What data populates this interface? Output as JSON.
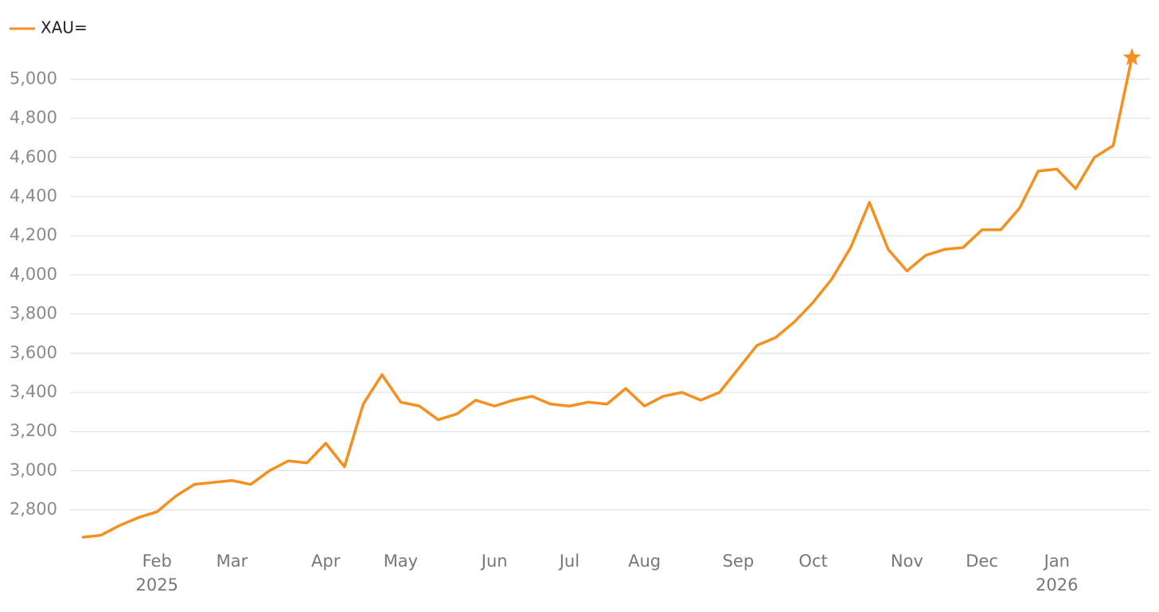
{
  "chart_data": {
    "type": "line",
    "categories": [
      null,
      null,
      null,
      null,
      "Feb",
      null,
      null,
      null,
      "Mar",
      null,
      null,
      null,
      null,
      "Apr",
      null,
      null,
      null,
      "May",
      null,
      null,
      null,
      null,
      "Jun",
      null,
      null,
      null,
      "Jul",
      null,
      null,
      null,
      "Aug",
      null,
      null,
      null,
      null,
      "Sep",
      null,
      null,
      null,
      "Oct",
      null,
      null,
      null,
      null,
      "Nov",
      null,
      null,
      null,
      "Dec",
      null,
      null,
      null,
      "Jan",
      null,
      null,
      null,
      null
    ],
    "category_sublabels": [
      null,
      null,
      null,
      null,
      "2025",
      null,
      null,
      null,
      null,
      null,
      null,
      null,
      null,
      null,
      null,
      null,
      null,
      null,
      null,
      null,
      null,
      null,
      null,
      null,
      null,
      null,
      null,
      null,
      null,
      null,
      null,
      null,
      null,
      null,
      null,
      null,
      null,
      null,
      null,
      null,
      null,
      null,
      null,
      null,
      null,
      null,
      null,
      null,
      null,
      null,
      null,
      null,
      "2026",
      null,
      null,
      null,
      null
    ],
    "series": [
      {
        "name": "XAU=",
        "color": "#f5901e",
        "values": [
          2660,
          2670,
          2720,
          2760,
          2790,
          2870,
          2930,
          2940,
          2950,
          2930,
          3000,
          3050,
          3040,
          3140,
          3020,
          3340,
          3490,
          3350,
          3330,
          3260,
          3290,
          3360,
          3330,
          3360,
          3380,
          3340,
          3330,
          3350,
          3340,
          3420,
          3330,
          3380,
          3400,
          3360,
          3400,
          3520,
          3640,
          3680,
          3760,
          3860,
          3980,
          4140,
          4370,
          4130,
          4020,
          4100,
          4130,
          4140,
          4230,
          4230,
          4340,
          4530,
          4540,
          4440,
          4600,
          4660,
          5110
        ]
      }
    ],
    "ylim": [
      2640,
      5160
    ],
    "yticks": [
      {
        "value": 2800,
        "label": "2,800"
      },
      {
        "value": 3000,
        "label": "3,000"
      },
      {
        "value": 3200,
        "label": "3,200"
      },
      {
        "value": 3400,
        "label": "3,400"
      },
      {
        "value": 3600,
        "label": "3,600"
      },
      {
        "value": 3800,
        "label": "3,800"
      },
      {
        "value": 4000,
        "label": "4,000"
      },
      {
        "value": 4200,
        "label": "4,200"
      },
      {
        "value": 4400,
        "label": "4,400"
      },
      {
        "value": 4600,
        "label": "4,600"
      },
      {
        "value": 4800,
        "label": "4,800"
      },
      {
        "value": 5000,
        "label": "5,000"
      }
    ],
    "grid": true,
    "legend": "top-left",
    "last_point_marker": "star"
  }
}
